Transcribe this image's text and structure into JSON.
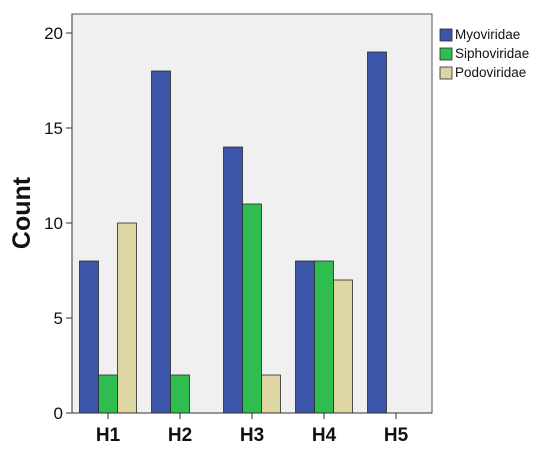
{
  "chart_data": {
    "type": "bar",
    "title": "",
    "xlabel": "",
    "ylabel": "Count",
    "ylim": [
      0,
      21
    ],
    "yticks": [
      0,
      5,
      10,
      15,
      20
    ],
    "grid": false,
    "legend_position": "top-right",
    "categories": [
      "H1",
      "H2",
      "H3",
      "H4",
      "H5"
    ],
    "series": [
      {
        "name": "Myoviridae",
        "color": "#3b56a8",
        "values": [
          8,
          18,
          14,
          8,
          19
        ]
      },
      {
        "name": "Siphoviridae",
        "color": "#2ebd4e",
        "values": [
          2,
          2,
          11,
          8,
          0
        ]
      },
      {
        "name": "Podoviridae",
        "color": "#ddd5a3",
        "values": [
          10,
          0,
          2,
          7,
          0
        ]
      }
    ],
    "plot_background": "#f0f0f0"
  }
}
